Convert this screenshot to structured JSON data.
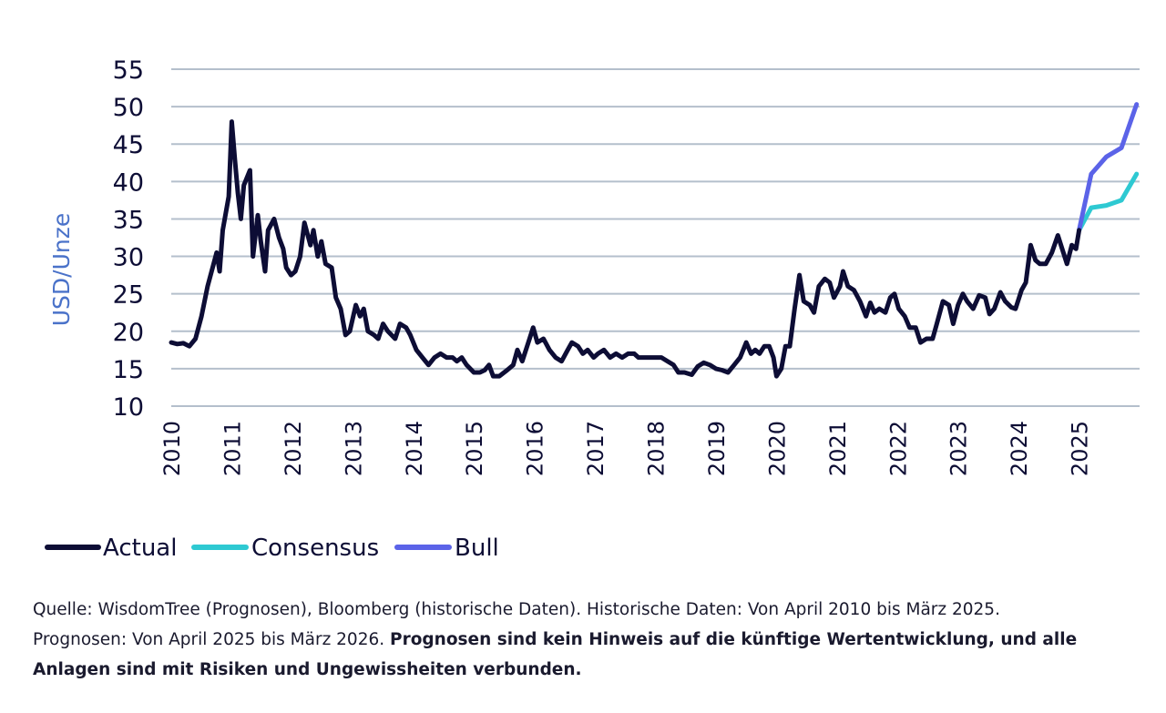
{
  "chart_data": {
    "type": "line",
    "title": "",
    "ylabel": "USD/Unze",
    "xlabel": "",
    "ylim": [
      10,
      55
    ],
    "xlim": [
      2010,
      2026
    ],
    "yticks": [
      "55",
      "50",
      "45",
      "40",
      "35",
      "30",
      "25",
      "20",
      "15",
      "10"
    ],
    "xticks": [
      "2010",
      "2011",
      "2012",
      "2013",
      "2014",
      "2015",
      "2016",
      "2017",
      "2018",
      "2019",
      "2020",
      "2021",
      "2022",
      "2023",
      "2024",
      "2025"
    ],
    "grid": true,
    "legend_position": "bottom-left",
    "series": [
      {
        "name": "Actual",
        "color": "#0d0d35",
        "points": [
          [
            2010.0,
            18.5
          ],
          [
            2010.1,
            18.3
          ],
          [
            2010.2,
            18.4
          ],
          [
            2010.3,
            18.0
          ],
          [
            2010.4,
            19.0
          ],
          [
            2010.5,
            22.0
          ],
          [
            2010.6,
            26.0
          ],
          [
            2010.7,
            29.0
          ],
          [
            2010.75,
            30.5
          ],
          [
            2010.8,
            28.0
          ],
          [
            2010.85,
            33.5
          ],
          [
            2010.95,
            38.0
          ],
          [
            2011.0,
            48.0
          ],
          [
            2011.05,
            43.0
          ],
          [
            2011.1,
            38.5
          ],
          [
            2011.15,
            35.0
          ],
          [
            2011.2,
            39.5
          ],
          [
            2011.3,
            41.5
          ],
          [
            2011.35,
            30.0
          ],
          [
            2011.43,
            35.5
          ],
          [
            2011.48,
            32.0
          ],
          [
            2011.55,
            28.0
          ],
          [
            2011.6,
            33.5
          ],
          [
            2011.7,
            35.0
          ],
          [
            2011.78,
            32.5
          ],
          [
            2011.85,
            31.0
          ],
          [
            2011.9,
            28.5
          ],
          [
            2011.98,
            27.5
          ],
          [
            2012.05,
            28.0
          ],
          [
            2012.13,
            30.0
          ],
          [
            2012.2,
            34.5
          ],
          [
            2012.3,
            31.5
          ],
          [
            2012.35,
            33.5
          ],
          [
            2012.42,
            30.0
          ],
          [
            2012.48,
            32.0
          ],
          [
            2012.55,
            29.0
          ],
          [
            2012.65,
            28.5
          ],
          [
            2012.72,
            24.5
          ],
          [
            2012.8,
            23.0
          ],
          [
            2012.88,
            19.5
          ],
          [
            2012.95,
            20.0
          ],
          [
            2013.05,
            23.5
          ],
          [
            2013.12,
            22.0
          ],
          [
            2013.18,
            23.0
          ],
          [
            2013.25,
            20.0
          ],
          [
            2013.35,
            19.5
          ],
          [
            2013.42,
            19.0
          ],
          [
            2013.5,
            21.0
          ],
          [
            2013.58,
            20.0
          ],
          [
            2013.7,
            19.0
          ],
          [
            2013.78,
            21.0
          ],
          [
            2013.88,
            20.5
          ],
          [
            2013.95,
            19.5
          ],
          [
            2014.05,
            17.5
          ],
          [
            2014.15,
            16.5
          ],
          [
            2014.25,
            15.5
          ],
          [
            2014.35,
            16.5
          ],
          [
            2014.45,
            17.0
          ],
          [
            2014.55,
            16.5
          ],
          [
            2014.65,
            16.5
          ],
          [
            2014.72,
            16.0
          ],
          [
            2014.8,
            16.5
          ],
          [
            2014.88,
            15.5
          ],
          [
            2015.0,
            14.5
          ],
          [
            2015.1,
            14.5
          ],
          [
            2015.18,
            14.8
          ],
          [
            2015.25,
            15.5
          ],
          [
            2015.32,
            14.0
          ],
          [
            2015.42,
            14.0
          ],
          [
            2015.55,
            14.8
          ],
          [
            2015.65,
            15.5
          ],
          [
            2015.72,
            17.5
          ],
          [
            2015.8,
            16.0
          ],
          [
            2015.9,
            18.5
          ],
          [
            2015.98,
            20.5
          ],
          [
            2016.05,
            18.5
          ],
          [
            2016.15,
            19.0
          ],
          [
            2016.25,
            17.5
          ],
          [
            2016.35,
            16.5
          ],
          [
            2016.45,
            16.0
          ],
          [
            2016.55,
            17.5
          ],
          [
            2016.62,
            18.5
          ],
          [
            2016.72,
            18.0
          ],
          [
            2016.8,
            17.0
          ],
          [
            2016.88,
            17.5
          ],
          [
            2016.98,
            16.5
          ],
          [
            2017.05,
            17.0
          ],
          [
            2017.15,
            17.5
          ],
          [
            2017.25,
            16.5
          ],
          [
            2017.35,
            17.0
          ],
          [
            2017.45,
            16.5
          ],
          [
            2017.55,
            17.0
          ],
          [
            2017.65,
            17.0
          ],
          [
            2017.72,
            16.5
          ],
          [
            2017.82,
            16.5
          ],
          [
            2017.92,
            16.5
          ],
          [
            2018.02,
            16.5
          ],
          [
            2018.1,
            16.5
          ],
          [
            2018.2,
            16.0
          ],
          [
            2018.3,
            15.5
          ],
          [
            2018.38,
            14.5
          ],
          [
            2018.48,
            14.5
          ],
          [
            2018.6,
            14.2
          ],
          [
            2018.7,
            15.3
          ],
          [
            2018.8,
            15.8
          ],
          [
            2018.9,
            15.5
          ],
          [
            2019.0,
            15.0
          ],
          [
            2019.1,
            14.8
          ],
          [
            2019.2,
            14.5
          ],
          [
            2019.3,
            15.5
          ],
          [
            2019.4,
            16.5
          ],
          [
            2019.5,
            18.5
          ],
          [
            2019.58,
            17.0
          ],
          [
            2019.65,
            17.5
          ],
          [
            2019.72,
            17.0
          ],
          [
            2019.8,
            18.0
          ],
          [
            2019.88,
            18.0
          ],
          [
            2019.95,
            16.5
          ],
          [
            2020.0,
            14.0
          ],
          [
            2020.08,
            15.0
          ],
          [
            2020.15,
            18.0
          ],
          [
            2020.22,
            18.0
          ],
          [
            2020.3,
            23.0
          ],
          [
            2020.38,
            27.5
          ],
          [
            2020.45,
            24.0
          ],
          [
            2020.55,
            23.5
          ],
          [
            2020.62,
            22.5
          ],
          [
            2020.7,
            26.0
          ],
          [
            2020.8,
            27.0
          ],
          [
            2020.88,
            26.5
          ],
          [
            2020.95,
            24.5
          ],
          [
            2021.05,
            26.0
          ],
          [
            2021.1,
            28.0
          ],
          [
            2021.18,
            26.0
          ],
          [
            2021.28,
            25.5
          ],
          [
            2021.38,
            24.0
          ],
          [
            2021.48,
            22.0
          ],
          [
            2021.55,
            23.8
          ],
          [
            2021.62,
            22.5
          ],
          [
            2021.7,
            23.0
          ],
          [
            2021.8,
            22.5
          ],
          [
            2021.88,
            24.5
          ],
          [
            2021.95,
            25.0
          ],
          [
            2022.02,
            23.0
          ],
          [
            2022.12,
            22.0
          ],
          [
            2022.2,
            20.5
          ],
          [
            2022.3,
            20.5
          ],
          [
            2022.38,
            18.5
          ],
          [
            2022.48,
            19.0
          ],
          [
            2022.58,
            19.0
          ],
          [
            2022.65,
            21.0
          ],
          [
            2022.75,
            24.0
          ],
          [
            2022.85,
            23.5
          ],
          [
            2022.92,
            21.0
          ],
          [
            2023.0,
            23.5
          ],
          [
            2023.08,
            25.0
          ],
          [
            2023.15,
            24.0
          ],
          [
            2023.25,
            23.0
          ],
          [
            2023.35,
            24.8
          ],
          [
            2023.45,
            24.5
          ],
          [
            2023.52,
            22.3
          ],
          [
            2023.6,
            23.0
          ],
          [
            2023.7,
            25.2
          ],
          [
            2023.78,
            24.0
          ],
          [
            2023.88,
            23.2
          ],
          [
            2023.95,
            23.0
          ],
          [
            2024.05,
            25.5
          ],
          [
            2024.12,
            26.5
          ],
          [
            2024.2,
            31.5
          ],
          [
            2024.28,
            29.5
          ],
          [
            2024.35,
            29.0
          ],
          [
            2024.45,
            29.0
          ],
          [
            2024.55,
            30.5
          ],
          [
            2024.65,
            32.8
          ],
          [
            2024.72,
            31.0
          ],
          [
            2024.8,
            29.0
          ],
          [
            2024.88,
            31.5
          ],
          [
            2024.95,
            31.0
          ],
          [
            2025.0,
            33.5
          ]
        ]
      },
      {
        "name": "Consensus",
        "color": "#2ec9d2",
        "points": [
          [
            2025.0,
            33.5
          ],
          [
            2025.2,
            36.5
          ],
          [
            2025.45,
            36.8
          ],
          [
            2025.7,
            37.5
          ],
          [
            2025.95,
            41.0
          ]
        ]
      },
      {
        "name": "Bull",
        "color": "#5b63e8",
        "points": [
          [
            2025.0,
            33.5
          ],
          [
            2025.2,
            41.0
          ],
          [
            2025.45,
            43.3
          ],
          [
            2025.7,
            44.5
          ],
          [
            2025.95,
            50.3
          ]
        ]
      }
    ]
  },
  "footnote": {
    "line1": "Quelle: WisdomTree (Prognosen), Bloomberg (historische Daten). Historische Daten: Von April 2010 bis März 2025.",
    "line2_normal": "Prognosen: Von April 2025 bis März 2026. ",
    "line2_bold": "Prognosen sind kein Hinweis auf die künftige Wertentwicklung, und alle",
    "line3_bold": "Anlagen sind mit Risiken und Ungewissheiten verbunden."
  }
}
